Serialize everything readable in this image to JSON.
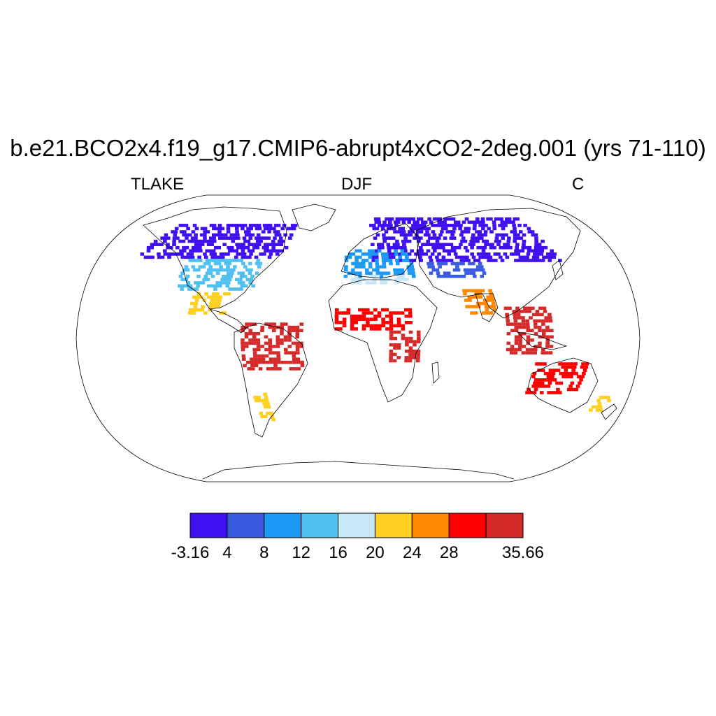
{
  "title": "b.e21.BCO2x4.f19_g17.CMIP6-abrupt4xCO2-2deg.001 (yrs 71-110)",
  "subtitle_left": "TLAKE",
  "subtitle_center": "DJF",
  "subtitle_right": "C",
  "colorbar": {
    "colors": [
      "#4010f0",
      "#3a5ae0",
      "#1a99f5",
      "#50c0f0",
      "#c8e8f8",
      "#ffd020",
      "#ff8800",
      "#ff0000",
      "#d42a2a"
    ],
    "labels": [
      "-3.16",
      "4",
      "8",
      "12",
      "16",
      "20",
      "24",
      "28",
      "",
      "35.66"
    ]
  },
  "map_data": {
    "variable": "TLAKE",
    "season": "DJF",
    "units": "C",
    "projection": "Robinson",
    "regions": [
      {
        "name": "Canada / Alaska",
        "lon": [
          -165,
          -55
        ],
        "lat": [
          50,
          72
        ],
        "bin": 0
      },
      {
        "name": "Northern Eurasia",
        "lon": [
          10,
          150
        ],
        "lat": [
          48,
          75
        ],
        "bin": 0
      },
      {
        "name": "Central Asia",
        "lon": [
          50,
          90
        ],
        "lat": [
          38,
          48
        ],
        "bin": 1
      },
      {
        "name": "Europe",
        "lon": [
          -10,
          40
        ],
        "lat": [
          38,
          55
        ],
        "bin": 2
      },
      {
        "name": "USA",
        "lon": [
          -125,
          -70
        ],
        "lat": [
          30,
          50
        ],
        "bin": 3
      },
      {
        "name": "Mediterranean",
        "lon": [
          -5,
          35
        ],
        "lat": [
          34,
          40
        ],
        "bin": 4
      },
      {
        "name": "Mexico",
        "lon": [
          -110,
          -85
        ],
        "lat": [
          15,
          28
        ],
        "bin": 5
      },
      {
        "name": "India",
        "lon": [
          70,
          90
        ],
        "lat": [
          15,
          30
        ],
        "bin": 6
      },
      {
        "name": "Sahel",
        "lon": [
          -15,
          35
        ],
        "lat": [
          5,
          18
        ],
        "bin": 7
      },
      {
        "name": "Amazon",
        "lon": [
          -75,
          -35
        ],
        "lat": [
          -20,
          10
        ],
        "bin": 8
      },
      {
        "name": "East Africa",
        "lon": [
          20,
          40
        ],
        "lat": [
          -15,
          5
        ],
        "bin": 8
      },
      {
        "name": "Southeast Asia",
        "lon": [
          95,
          125
        ],
        "lat": [
          -10,
          20
        ],
        "bin": 8
      },
      {
        "name": "Australia",
        "lon": [
          115,
          150
        ],
        "lat": [
          -35,
          -15
        ],
        "bin": 7
      },
      {
        "name": "Patagonia",
        "lon": [
          -73,
          -65
        ],
        "lat": [
          -52,
          -35
        ],
        "bin": 5
      },
      {
        "name": "New Zealand",
        "lon": [
          168,
          178
        ],
        "lat": [
          -46,
          -37
        ],
        "bin": 5
      }
    ]
  }
}
